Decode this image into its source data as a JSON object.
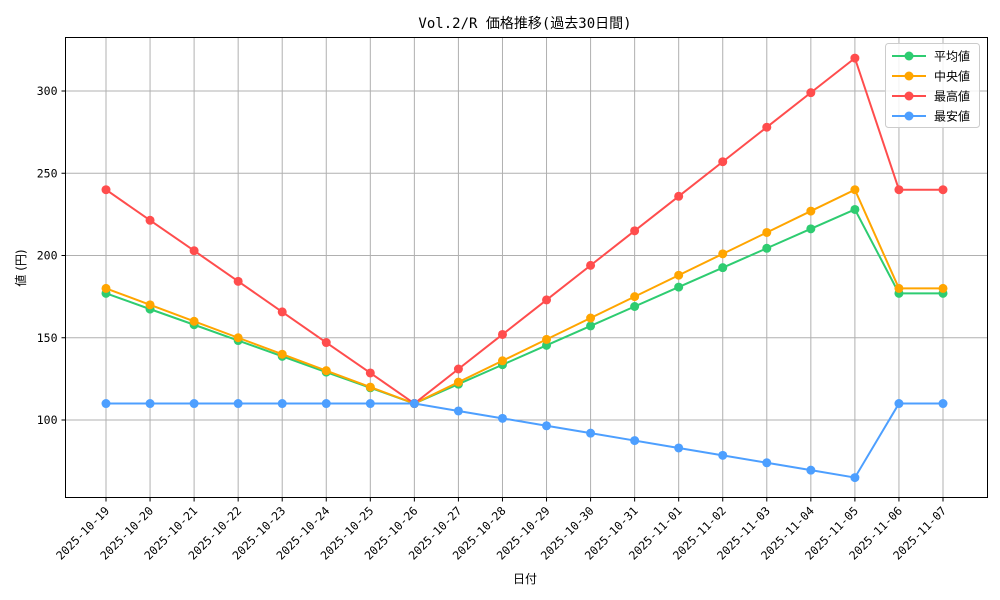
{
  "chart_data": {
    "type": "line",
    "title": "Vol.2/R 価格推移(過去30日間)",
    "xlabel": "日付",
    "ylabel": "値 (円)",
    "ylim": [
      53,
      333
    ],
    "yticks": [
      100,
      150,
      200,
      250,
      300
    ],
    "grid": true,
    "legend_position": "upper right",
    "categories": [
      "2025-10-19",
      "2025-10-20",
      "2025-10-21",
      "2025-10-22",
      "2025-10-23",
      "2025-10-24",
      "2025-10-25",
      "2025-10-26",
      "2025-10-27",
      "2025-10-28",
      "2025-10-29",
      "2025-10-30",
      "2025-10-31",
      "2025-11-01",
      "2025-11-02",
      "2025-11-03",
      "2025-11-04",
      "2025-11-05",
      "2025-11-06",
      "2025-11-07"
    ],
    "series": [
      {
        "name": "平均値",
        "color": "#2ecc71",
        "values": [
          177,
          167.4,
          157.9,
          148.3,
          138.7,
          129.1,
          119.6,
          110,
          121.8,
          133.6,
          145.4,
          157.2,
          169,
          180.8,
          192.6,
          204.4,
          216.2,
          228,
          177,
          177
        ]
      },
      {
        "name": "中央値",
        "color": "#ffa500",
        "values": [
          180,
          170,
          160,
          150,
          140,
          130,
          120,
          110,
          123,
          136,
          149,
          162,
          175,
          188,
          201,
          214,
          227,
          240,
          180,
          180
        ]
      },
      {
        "name": "最高値",
        "color": "#ff4d4d",
        "values": [
          240,
          221.4,
          202.9,
          184.3,
          165.7,
          147.1,
          128.6,
          110,
          131,
          152,
          173,
          194,
          215,
          236,
          257,
          278,
          299,
          320,
          240,
          240
        ]
      },
      {
        "name": "最安値",
        "color": "#4d9fff",
        "values": [
          110,
          110,
          110,
          110,
          110,
          110,
          110,
          110,
          105.5,
          101,
          96.5,
          92,
          87.5,
          83,
          78.5,
          74,
          69.5,
          65,
          110,
          110
        ]
      }
    ]
  }
}
